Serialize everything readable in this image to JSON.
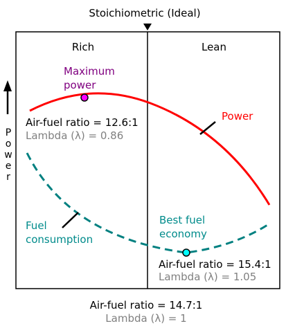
{
  "top_label": "Stoichiometric (Ideal)",
  "regions": {
    "left": "Rich",
    "right": "Lean"
  },
  "y_axis_label": [
    "P",
    "o",
    "w",
    "e",
    "r"
  ],
  "max_power": {
    "title_lines": [
      "Maximum",
      "power"
    ],
    "ratio": "Air-fuel ratio = 12.6:1",
    "lambda": "Lambda (λ) = 0.86"
  },
  "curves": {
    "power": "Power",
    "fuel_lines": [
      "Fuel",
      "consumption"
    ]
  },
  "best_economy": {
    "title_lines": [
      "Best fuel",
      "economy"
    ],
    "ratio": "Air-fuel ratio = 15.4:1",
    "lambda": "Lambda (λ) = 1.05"
  },
  "bottom": {
    "ratio": "Air-fuel ratio = 14.7:1",
    "lambda": "Lambda (λ) = 1"
  },
  "colors": {
    "power_curve": "#ff0000",
    "fuel_curve": "#008080",
    "max_power_text": "#800080",
    "max_power_marker": "#ff00ff",
    "economy_text": "#008b8b",
    "economy_marker": "#00ffff",
    "lambda_text": "#808080",
    "axis": "#000000"
  }
}
